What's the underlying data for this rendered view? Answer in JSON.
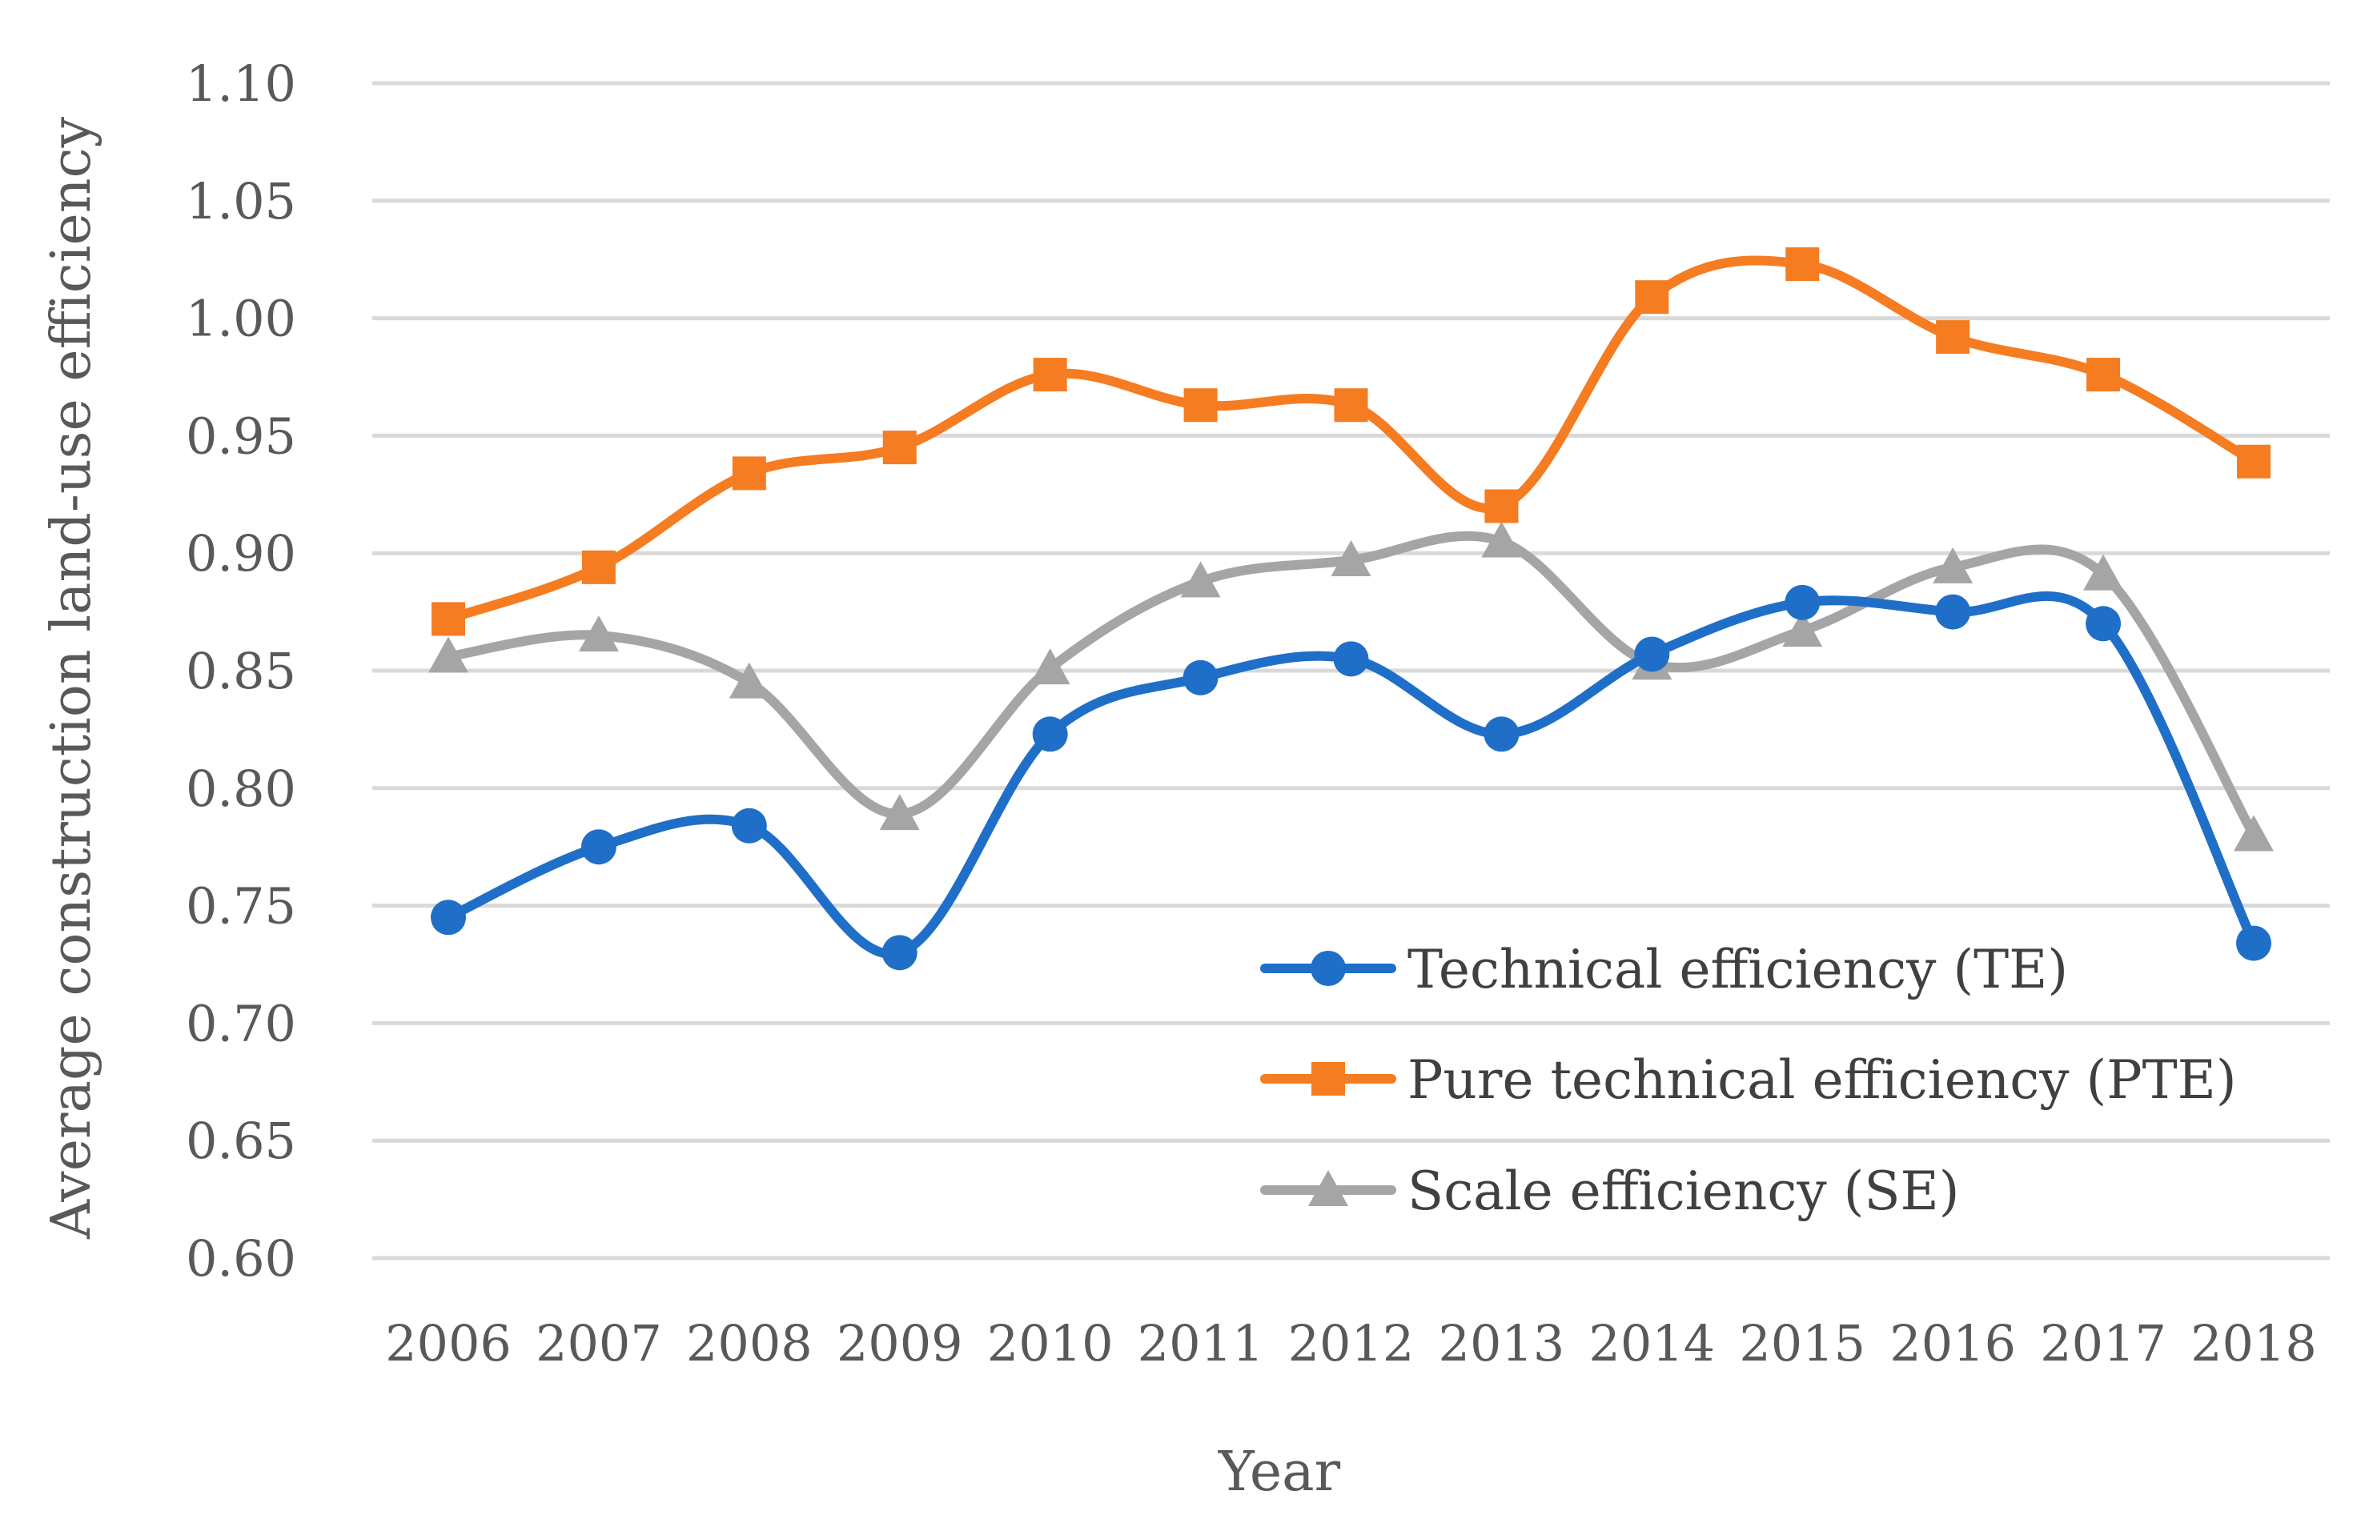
{
  "chart_data": {
    "type": "line",
    "title": "",
    "xlabel": "Year",
    "ylabel": "Average construction land-use efficiency",
    "ylim": [
      0.6,
      1.1
    ],
    "ytick_step": 0.05,
    "yticks": [
      "0.60",
      "0.65",
      "0.70",
      "0.75",
      "0.80",
      "0.85",
      "0.90",
      "0.95",
      "1.00",
      "1.05",
      "1.10"
    ],
    "grid": true,
    "legend_position": "bottom-right",
    "categories": [
      "2006",
      "2007",
      "2008",
      "2009",
      "2010",
      "2011",
      "2012",
      "2013",
      "2014",
      "2015",
      "2016",
      "2017",
      "2018"
    ],
    "series": [
      {
        "name": "Technical efficiency (TE)",
        "color": "#1f6fc8",
        "marker": "circle",
        "smooth": true,
        "values": [
          0.745,
          0.775,
          0.784,
          0.73,
          0.823,
          0.847,
          0.855,
          0.823,
          0.857,
          0.879,
          0.875,
          0.87,
          0.734
        ]
      },
      {
        "name": "Pure technical efficiency (PTE)",
        "color": "#f57c20",
        "marker": "square",
        "smooth": true,
        "values": [
          0.872,
          0.894,
          0.934,
          0.945,
          0.976,
          0.963,
          0.963,
          0.92,
          1.009,
          1.023,
          0.992,
          0.976,
          0.939
        ]
      },
      {
        "name": "Scale efficiency (SE)",
        "color": "#a5a5a5",
        "marker": "triangle",
        "smooth": true,
        "values": [
          0.856,
          0.865,
          0.845,
          0.789,
          0.851,
          0.888,
          0.897,
          0.905,
          0.853,
          0.867,
          0.894,
          0.891,
          0.78
        ]
      }
    ]
  }
}
